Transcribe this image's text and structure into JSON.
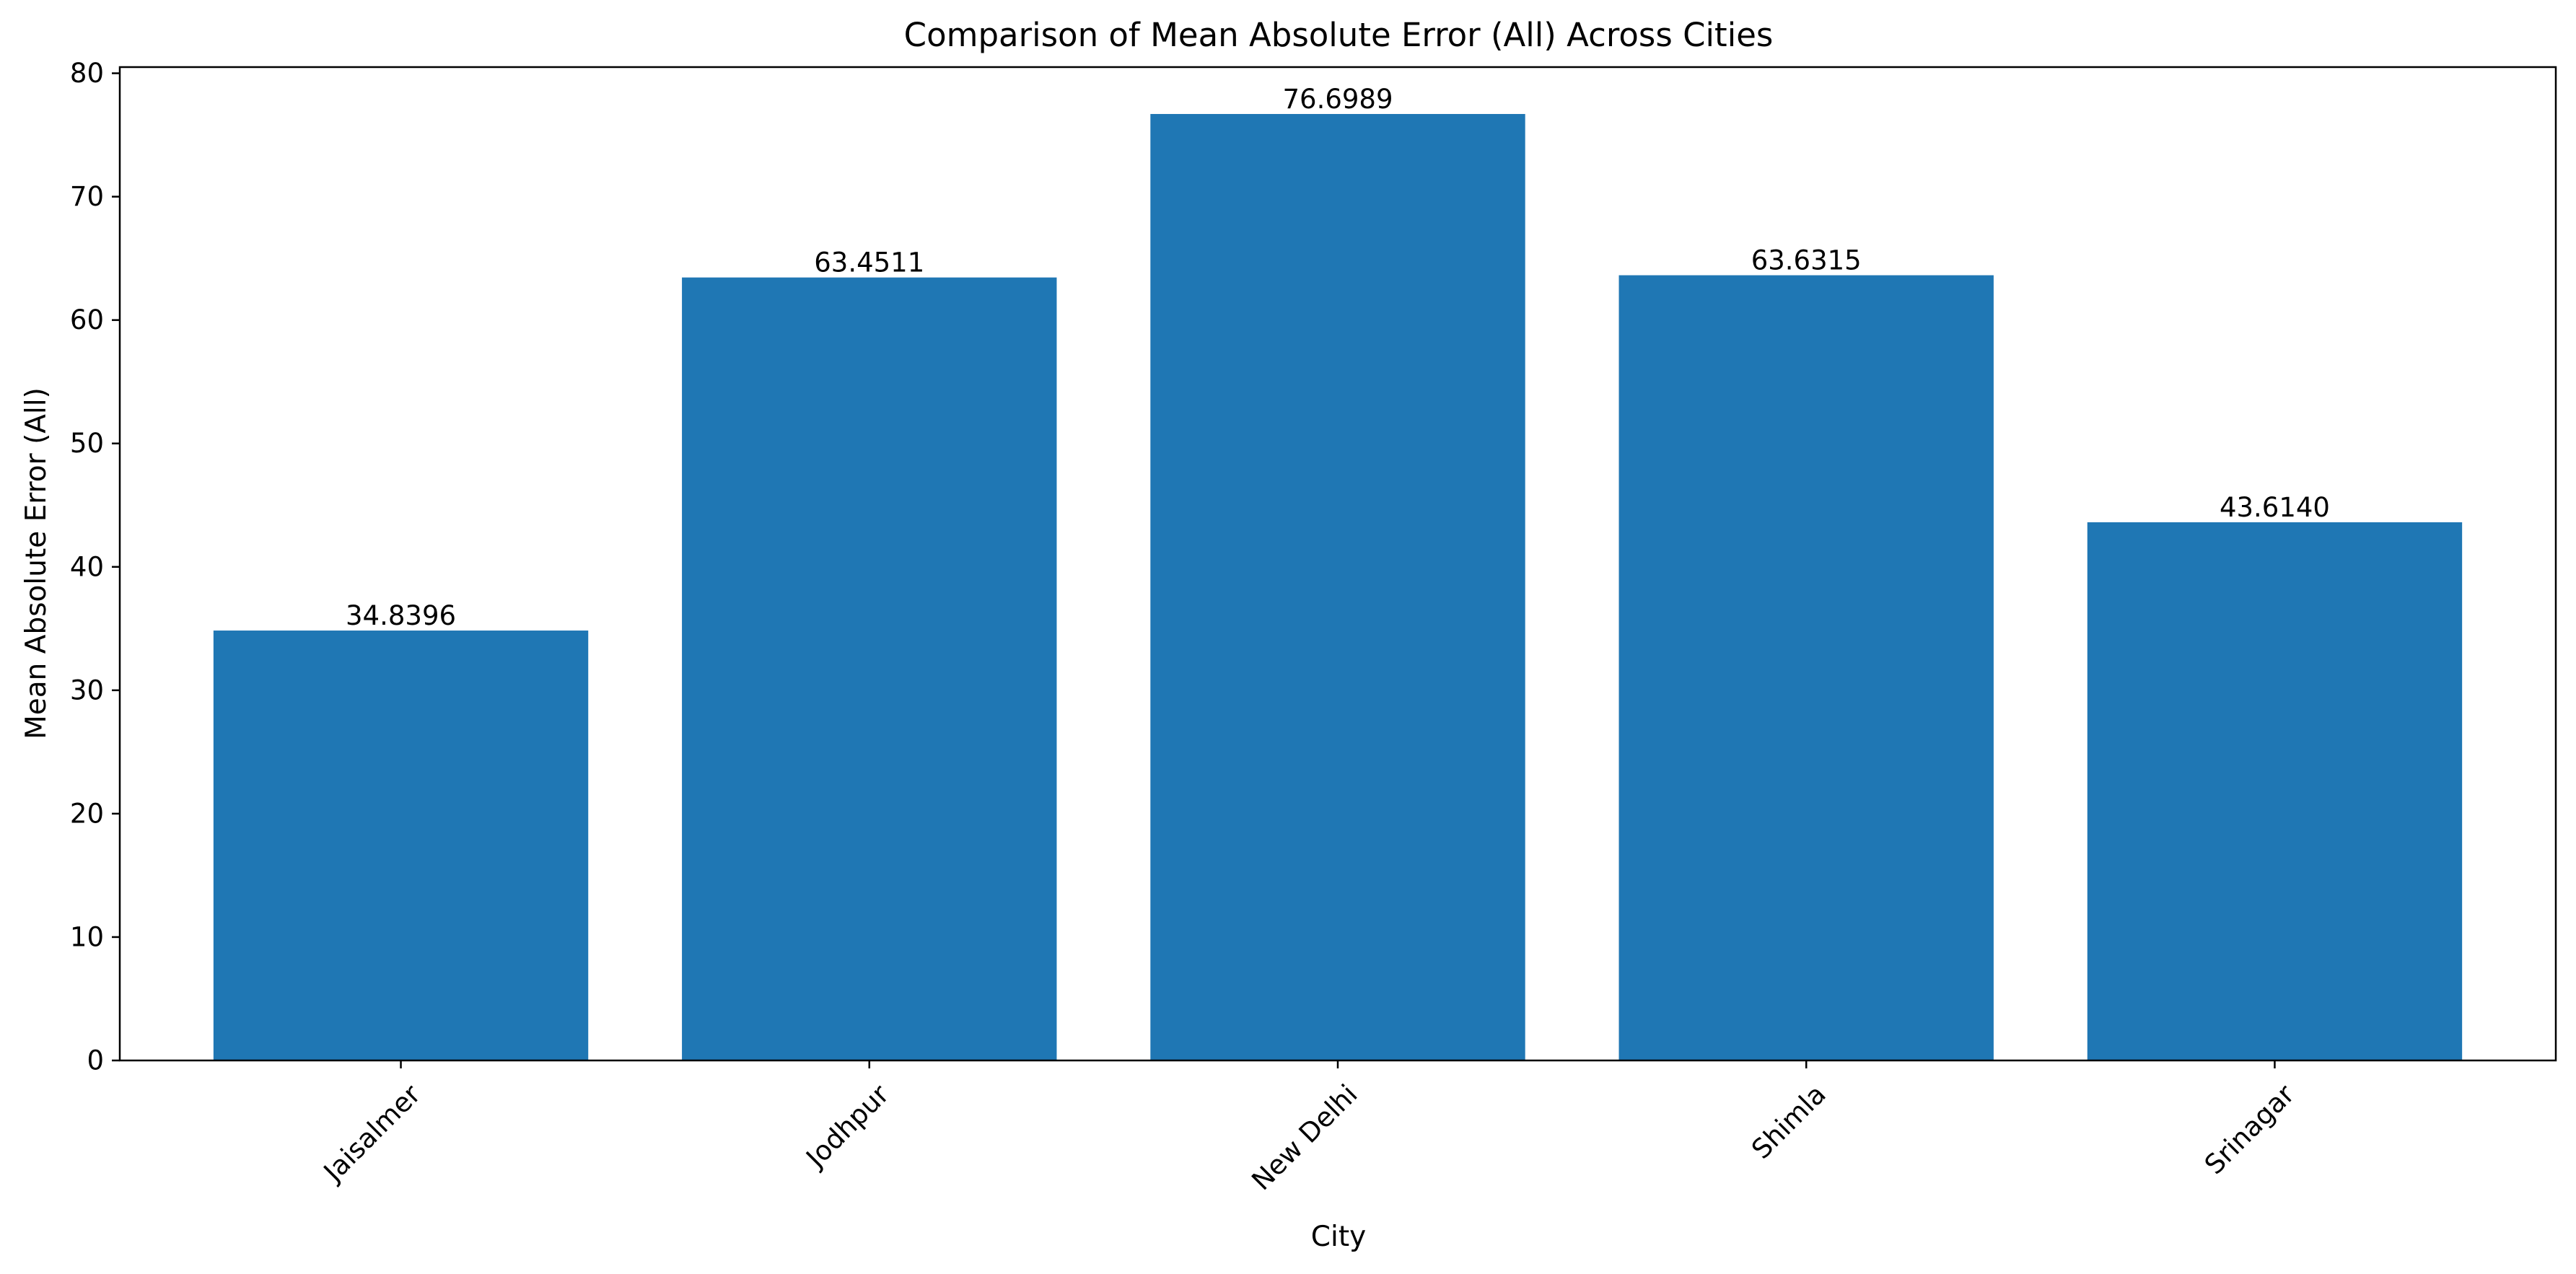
{
  "chart_data": {
    "type": "bar",
    "title": "Comparison of Mean Absolute Error (All) Across Cities",
    "xlabel": "City",
    "ylabel": "Mean Absolute Error (All)",
    "categories": [
      "Jaisalmer",
      "Jodhpur",
      "New Delhi",
      "Shimla",
      "Srinagar"
    ],
    "values": [
      34.8396,
      63.4511,
      76.6989,
      63.6315,
      43.614
    ],
    "value_labels": [
      "34.8396",
      "63.4511",
      "76.6989",
      "63.6315",
      "43.6140"
    ],
    "ylim": [
      0,
      80.5
    ],
    "yticks": [
      0,
      10,
      20,
      30,
      40,
      50,
      60,
      70,
      80
    ],
    "ytick_labels": [
      "0",
      "10",
      "20",
      "30",
      "40",
      "50",
      "60",
      "70",
      "80"
    ],
    "grid": false,
    "legend": "none",
    "bar_color": "#1f77b4",
    "xtick_rotation_deg": 45
  }
}
